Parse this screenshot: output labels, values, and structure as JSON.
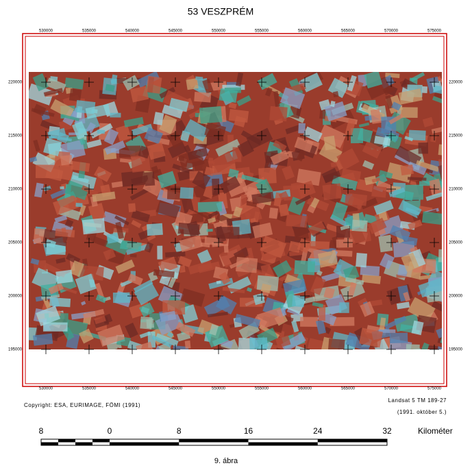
{
  "title": "53 VESZPRÉM",
  "grid": {
    "eastings": [
      530000,
      535000,
      540000,
      545000,
      550000,
      555000,
      560000,
      565000,
      570000,
      575000
    ],
    "northings": [
      220000,
      215000,
      210000,
      205000,
      200000,
      195000
    ]
  },
  "copyright": "Copyright: ESA, EURIMAGE, FÖMI (1991)",
  "source": [
    "Landsat 5 TM 189-27",
    "(1991. október 5.)"
  ],
  "scale_bar": {
    "labels": [
      8,
      0,
      8,
      16,
      24,
      32
    ],
    "unit": "Kilométer"
  },
  "caption": "9. ábra"
}
